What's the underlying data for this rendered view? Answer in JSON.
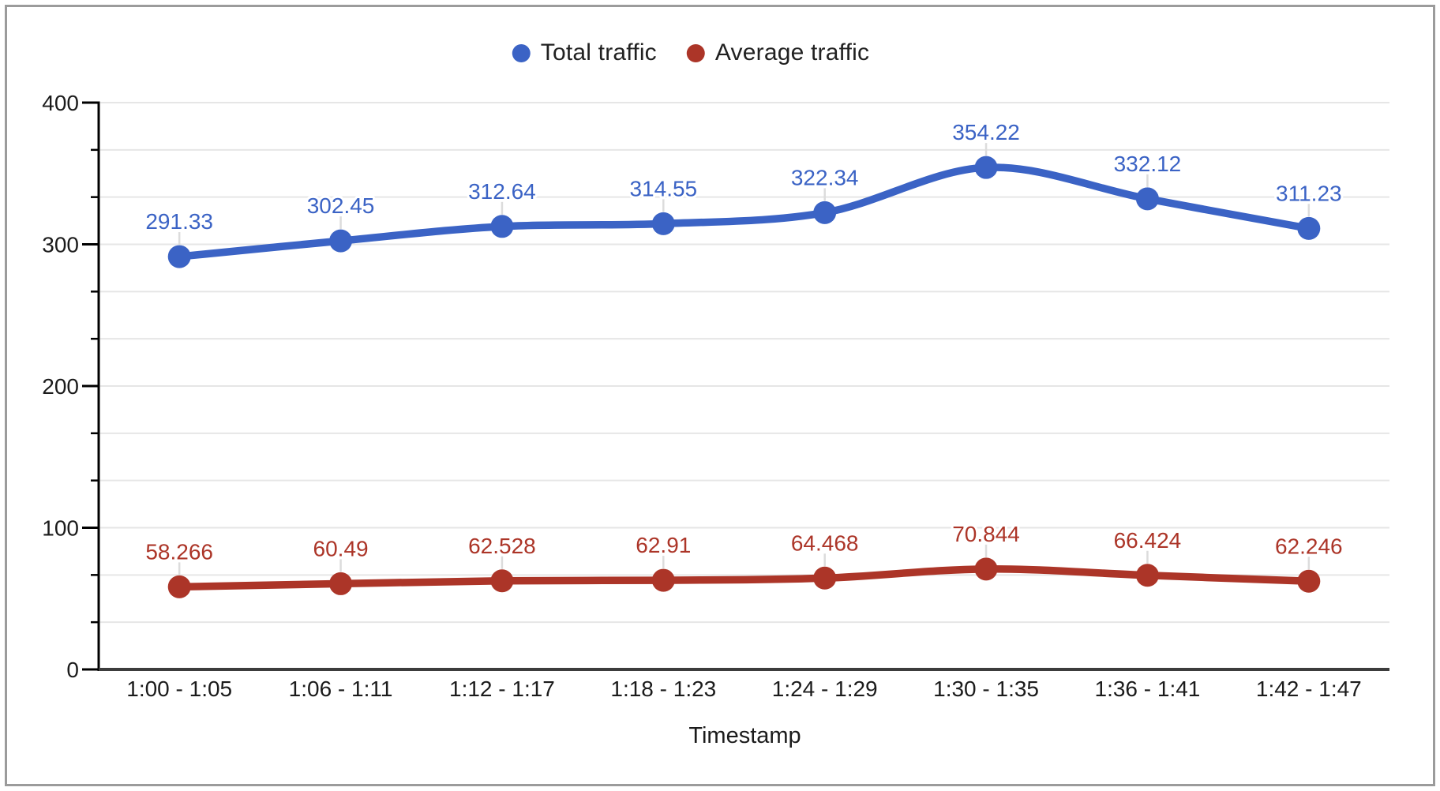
{
  "frame": {
    "border_color": "#9b9b9b",
    "background": "#ffffff"
  },
  "legend": {
    "position": "top",
    "items": [
      {
        "label": "Total traffic",
        "color": "#3B63C5"
      },
      {
        "label": "Average traffic",
        "color": "#AC3528"
      }
    ]
  },
  "chart_data": {
    "type": "line",
    "smooth": true,
    "title": "",
    "xlabel": "Timestamp",
    "ylabel": "",
    "categories": [
      "1:00 - 1:05",
      "1:06 - 1:11",
      "1:12 - 1:17",
      "1:18 - 1:23",
      "1:24 - 1:29",
      "1:30 - 1:35",
      "1:36 - 1:41",
      "1:42 - 1:47"
    ],
    "series": [
      {
        "name": "Total traffic",
        "color": "#3B63C5",
        "values": [
          291.33,
          302.45,
          312.64,
          314.55,
          322.34,
          354.22,
          332.12,
          311.23
        ],
        "point_labels": [
          "291.33",
          "302.45",
          "312.64",
          "314.55",
          "322.34",
          "354.22",
          "332.12",
          "311.23"
        ]
      },
      {
        "name": "Average traffic",
        "color": "#AC3528",
        "values": [
          58.266,
          60.49,
          62.528,
          62.91,
          64.468,
          70.844,
          66.424,
          62.246
        ],
        "point_labels": [
          "58.266",
          "60.49",
          "62.528",
          "62.91",
          "64.468",
          "70.844",
          "66.424",
          "62.246"
        ]
      }
    ],
    "ylim": [
      0,
      400
    ],
    "yticks": [
      0,
      100,
      200,
      300,
      400
    ],
    "minor_gridlines_per_interval": 2,
    "grid_on": true,
    "grid_color": "#e6e6e6",
    "stem_color": "#dcdcdc",
    "axis_line_color": "#000000",
    "baseline_color": "#3c3c3c",
    "tick_label_color": "#1b1b1b",
    "legend_position": "top"
  }
}
